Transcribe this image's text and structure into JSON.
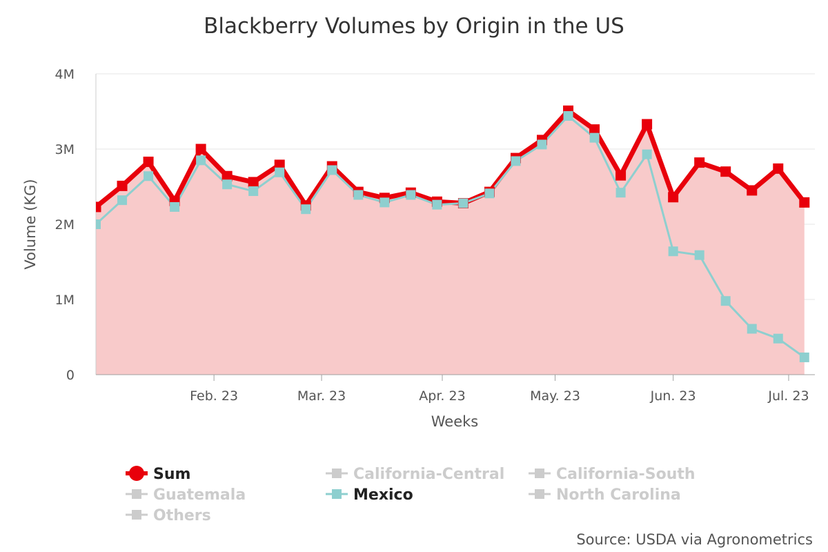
{
  "chart_data": {
    "type": "area",
    "title": "Blackberry Volumes by Origin in the US",
    "xlabel": "Weeks",
    "ylabel": "Volume (KG)",
    "ylim": [
      0,
      4000000
    ],
    "y_ticks": [
      {
        "value": 0,
        "label": "0"
      },
      {
        "value": 1000000,
        "label": "1M"
      },
      {
        "value": 2000000,
        "label": "2M"
      },
      {
        "value": 3000000,
        "label": "3M"
      },
      {
        "value": 4000000,
        "label": "4M"
      }
    ],
    "x_ticks": [
      {
        "week": 4.5,
        "label": "Feb. 23"
      },
      {
        "week": 8.6,
        "label": "Mar. 23"
      },
      {
        "week": 13.2,
        "label": "Apr. 23"
      },
      {
        "week": 17.5,
        "label": "May. 23"
      },
      {
        "week": 22.0,
        "label": "Jun. 23"
      },
      {
        "week": 26.4,
        "label": "Jul. 23"
      }
    ],
    "x_range": [
      0,
      27.4
    ],
    "grid": true,
    "series": [
      {
        "name": "Sum",
        "visible": true,
        "color": "#e8000b",
        "fill": "#f8caca",
        "values": [
          2230000,
          2510000,
          2830000,
          2310000,
          3000000,
          2640000,
          2560000,
          2790000,
          2250000,
          2770000,
          2430000,
          2350000,
          2420000,
          2300000,
          2280000,
          2430000,
          2880000,
          3120000,
          3510000,
          3260000,
          2650000,
          3330000,
          2360000,
          2820000,
          2700000,
          2450000,
          2740000,
          2290000
        ]
      },
      {
        "name": "Mexico",
        "visible": true,
        "color": "#8ecfcf",
        "values": [
          2000000,
          2320000,
          2640000,
          2230000,
          2850000,
          2530000,
          2440000,
          2690000,
          2200000,
          2720000,
          2390000,
          2290000,
          2390000,
          2260000,
          2280000,
          2410000,
          2840000,
          3060000,
          3440000,
          3150000,
          2420000,
          2930000,
          1640000,
          1590000,
          980000,
          610000,
          480000,
          230000
        ]
      }
    ],
    "legend": {
      "position": "bottom",
      "items": [
        {
          "name": "Sum",
          "visible": true,
          "color": "#e8000b",
          "marker": "circle"
        },
        {
          "name": "California-Central",
          "visible": false,
          "color": "#cccccc",
          "marker": "square"
        },
        {
          "name": "California-South",
          "visible": false,
          "color": "#cccccc",
          "marker": "square"
        },
        {
          "name": "Guatemala",
          "visible": false,
          "color": "#cccccc",
          "marker": "square"
        },
        {
          "name": "Mexico",
          "visible": true,
          "color": "#8ecfcf",
          "marker": "square"
        },
        {
          "name": "North Carolina",
          "visible": false,
          "color": "#cccccc",
          "marker": "square"
        },
        {
          "name": "Others",
          "visible": false,
          "color": "#cccccc",
          "marker": "square"
        }
      ]
    },
    "credit": "Source: USDA via Agronometrics"
  }
}
